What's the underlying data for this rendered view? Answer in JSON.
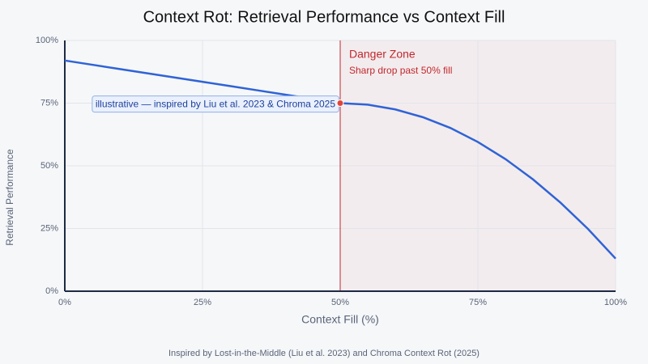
{
  "chart_data": {
    "type": "line",
    "title": "Context Rot: Retrieval Performance vs Context Fill",
    "x_label": "Context Fill (%)",
    "y_label": "Retrieval Performance",
    "footnote": "Inspired by Lost-in-the-Middle (Liu et al. 2023) and Chroma Context Rot (2025)",
    "x": [
      0,
      5,
      10,
      15,
      20,
      25,
      30,
      35,
      40,
      45,
      50,
      55,
      60,
      65,
      70,
      75,
      80,
      85,
      90,
      95,
      100
    ],
    "series": [
      {
        "color": "#2f63d6",
        "values": [
          92,
          90.3,
          88.6,
          86.9,
          85.2,
          83.5,
          81.8,
          80.1,
          78.4,
          76.7,
          75,
          74.4,
          72.5,
          69.4,
          65.1,
          59.5,
          52.7,
          44.6,
          35.3,
          24.8,
          13
        ]
      }
    ],
    "xlim": [
      0,
      100
    ],
    "ylim": [
      0,
      100
    ],
    "xticks": [
      {
        "value": 0,
        "label": "0%"
      },
      {
        "value": 25,
        "label": "25%"
      },
      {
        "value": 50,
        "label": "50%"
      },
      {
        "value": 75,
        "label": "75%"
      },
      {
        "value": 100,
        "label": "100%"
      }
    ],
    "yticks": [
      {
        "value": 0,
        "label": "0%"
      },
      {
        "value": 25,
        "label": "25%"
      },
      {
        "value": 50,
        "label": "50%"
      },
      {
        "value": 75,
        "label": "75%"
      },
      {
        "value": 100,
        "label": "100%"
      }
    ],
    "grid": true,
    "danger_zone": {
      "x_start": 50,
      "x_end": 100,
      "label": "Danger Zone",
      "note": "Sharp drop past 50% fill",
      "color": "#c0282d"
    },
    "marker": {
      "x": 50,
      "y": 75,
      "label": "illustrative — inspired by Liu et al. 2023 & Chroma 2025",
      "color": "#e0453a"
    }
  }
}
